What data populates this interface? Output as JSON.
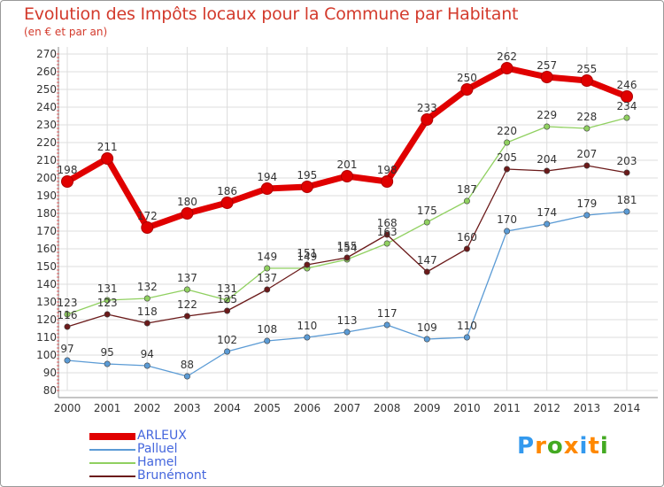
{
  "chart_data": {
    "type": "line",
    "title": "Evolution des Impôts locaux pour la Commune par Habitant",
    "subtitle": "(en € et par an)",
    "x": [
      "2000",
      "2001",
      "2002",
      "2003",
      "2004",
      "2005",
      "2006",
      "2007",
      "2008",
      "2009",
      "2010",
      "2011",
      "2012",
      "2013",
      "2014"
    ],
    "ylim": [
      80,
      270
    ],
    "yticks": [
      80,
      90,
      100,
      110,
      120,
      130,
      140,
      150,
      160,
      170,
      180,
      190,
      200,
      210,
      220,
      230,
      240,
      250,
      260,
      270
    ],
    "grid": true,
    "legend_position": "bottom-left",
    "series": [
      {
        "name": "ARLEUX",
        "color": "#e00000",
        "values": [
          198,
          211,
          172,
          180,
          186,
          194,
          195,
          201,
          198,
          233,
          250,
          262,
          257,
          255,
          246
        ],
        "labels": [
          "198",
          "211",
          "172",
          "180",
          "186",
          "194",
          "195",
          "201",
          "198",
          "233",
          "250",
          "262",
          "257",
          "255",
          "246"
        ]
      },
      {
        "name": "Palluel",
        "color": "#5b9bd5",
        "values": [
          97,
          95,
          94,
          88,
          102,
          108,
          110,
          113,
          117,
          109,
          110,
          170,
          174,
          179,
          181
        ],
        "labels": [
          "97",
          "95",
          "94",
          "88",
          "102",
          "108",
          "110",
          "113",
          "117",
          "109",
          "110",
          "170",
          "174",
          "179",
          "181"
        ]
      },
      {
        "name": "Hamel",
        "color": "#90d060",
        "values": [
          123,
          131,
          132,
          137,
          131,
          149,
          149,
          154,
          163,
          175,
          187,
          220,
          229,
          228,
          234
        ],
        "labels": [
          "123",
          "131",
          "132",
          "137",
          "131",
          "149",
          "149",
          "154",
          "163",
          "175",
          "187",
          "220",
          "229",
          "228",
          "234"
        ]
      },
      {
        "name": "Brunémont",
        "color": "#6b1a1a",
        "values": [
          116,
          123,
          118,
          122,
          125,
          137,
          151,
          155,
          168,
          147,
          160,
          205,
          204,
          207,
          203
        ],
        "labels": [
          "116",
          "123",
          "118",
          "122",
          "125",
          "137",
          "151",
          "155",
          "168",
          "147",
          "160",
          "205",
          "204",
          "207",
          "203"
        ]
      }
    ]
  },
  "legend_text_color": "#4466dd",
  "brand": {
    "letters": [
      "P",
      "r",
      "o",
      "x",
      "i",
      "t",
      "i"
    ],
    "colors": [
      "#3399ee",
      "#ff8800",
      "#44aa22",
      "#ff8800",
      "#3399ee",
      "#ff8800",
      "#44aa22"
    ]
  }
}
